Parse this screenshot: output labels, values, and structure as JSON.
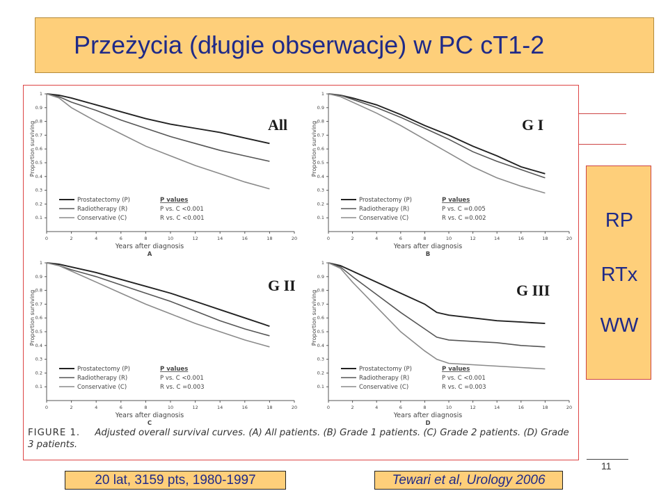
{
  "slide": {
    "title": "Przeżycia (długie obserwacje) w PC cT1-2",
    "footer_left": "20 lat, 3159 pts, 1980-1997",
    "footer_right": "Tewari et al, Urology 2006",
    "slide_number": "11",
    "legend_items": [
      "RP",
      "RTx",
      "WW"
    ],
    "overlay_labels": [
      "All",
      "G I",
      "G II",
      "G III"
    ],
    "caption_fig": "FIGURE 1.",
    "caption_text": "Adjusted overall survival curves. (A) All patients. (B) Grade 1 patients. (C) Grade 2 patients. (D) Grade 3 patients."
  },
  "colors": {
    "title_bg": "#fecf7a",
    "title_text": "#1f2a88",
    "frame": "#d44444"
  },
  "chart_data": [
    {
      "type": "line",
      "panel": "A",
      "xlabel": "Years after diagnosis",
      "ylabel": "Proportion surviving",
      "x_ticks": [
        0,
        2,
        4,
        6,
        8,
        10,
        12,
        14,
        16,
        18,
        20
      ],
      "y_ticks": [
        0.1,
        0.2,
        0.3,
        0.4,
        0.5,
        0.6,
        0.7,
        0.8,
        0.9,
        1
      ],
      "xlim": [
        0,
        20
      ],
      "ylim": [
        0,
        1
      ],
      "legend_title": "P values",
      "pvalues": [
        "P  vs. C <0.001",
        "R  vs. C <0.001"
      ],
      "series": [
        {
          "name": "Prostatectomy (P)",
          "x": [
            0,
            1,
            2,
            4,
            6,
            8,
            10,
            12,
            14,
            16,
            18
          ],
          "y": [
            1,
            0.99,
            0.97,
            0.92,
            0.87,
            0.82,
            0.78,
            0.75,
            0.72,
            0.68,
            0.64
          ]
        },
        {
          "name": "Radiotherapy (R)",
          "x": [
            0,
            1,
            2,
            4,
            6,
            8,
            10,
            12,
            14,
            16,
            18
          ],
          "y": [
            1,
            0.98,
            0.94,
            0.88,
            0.81,
            0.75,
            0.69,
            0.64,
            0.59,
            0.55,
            0.51
          ]
        },
        {
          "name": "Conservative (C)",
          "x": [
            0,
            1,
            2,
            4,
            6,
            8,
            10,
            12,
            14,
            16,
            18
          ],
          "y": [
            1,
            0.97,
            0.9,
            0.8,
            0.71,
            0.62,
            0.55,
            0.48,
            0.42,
            0.36,
            0.31
          ]
        }
      ]
    },
    {
      "type": "line",
      "panel": "B",
      "xlabel": "Years after diagnosis",
      "ylabel": "Proportion surviving",
      "x_ticks": [
        0,
        2,
        4,
        6,
        8,
        10,
        12,
        14,
        16,
        18,
        20
      ],
      "y_ticks": [
        0.1,
        0.2,
        0.3,
        0.4,
        0.5,
        0.6,
        0.7,
        0.8,
        0.9,
        1
      ],
      "xlim": [
        0,
        20
      ],
      "ylim": [
        0,
        1
      ],
      "legend_title": "P values",
      "pvalues": [
        "P  vs. C =0.005",
        "R  vs. C =0.002"
      ],
      "series": [
        {
          "name": "Prostatectomy (P)",
          "x": [
            0,
            1,
            2,
            4,
            6,
            8,
            10,
            12,
            14,
            16,
            18
          ],
          "y": [
            1,
            0.99,
            0.97,
            0.92,
            0.85,
            0.77,
            0.7,
            0.62,
            0.55,
            0.47,
            0.42
          ]
        },
        {
          "name": "Radiotherapy (R)",
          "x": [
            0,
            1,
            2,
            4,
            6,
            8,
            10,
            12,
            14,
            16,
            18
          ],
          "y": [
            1,
            0.99,
            0.96,
            0.9,
            0.83,
            0.75,
            0.67,
            0.58,
            0.51,
            0.45,
            0.39
          ]
        },
        {
          "name": "Conservative (C)",
          "x": [
            0,
            1,
            2,
            4,
            6,
            8,
            10,
            12,
            14,
            16,
            18
          ],
          "y": [
            1,
            0.98,
            0.94,
            0.86,
            0.77,
            0.67,
            0.57,
            0.47,
            0.39,
            0.33,
            0.28
          ]
        }
      ]
    },
    {
      "type": "line",
      "panel": "C",
      "xlabel": "Years after diagnosis",
      "ylabel": "Proportion surviving",
      "x_ticks": [
        0,
        2,
        4,
        6,
        8,
        10,
        12,
        14,
        16,
        18,
        20
      ],
      "y_ticks": [
        0.1,
        0.2,
        0.3,
        0.4,
        0.5,
        0.6,
        0.7,
        0.8,
        0.9,
        1
      ],
      "xlim": [
        0,
        20
      ],
      "ylim": [
        0,
        1
      ],
      "legend_title": "P values",
      "pvalues": [
        "P  vs. C <0.001",
        "R  vs. C =0.003"
      ],
      "series": [
        {
          "name": "Prostatectomy (P)",
          "x": [
            0,
            1,
            2,
            4,
            6,
            8,
            10,
            12,
            14,
            16,
            18
          ],
          "y": [
            1,
            0.99,
            0.97,
            0.93,
            0.88,
            0.83,
            0.78,
            0.72,
            0.66,
            0.6,
            0.54
          ]
        },
        {
          "name": "Radiotherapy (R)",
          "x": [
            0,
            1,
            2,
            4,
            6,
            8,
            10,
            12,
            14,
            16,
            18
          ],
          "y": [
            1,
            0.98,
            0.95,
            0.9,
            0.84,
            0.78,
            0.72,
            0.65,
            0.58,
            0.52,
            0.47
          ]
        },
        {
          "name": "Conservative (C)",
          "x": [
            0,
            1,
            2,
            4,
            6,
            8,
            10,
            12,
            14,
            16,
            18
          ],
          "y": [
            1,
            0.98,
            0.94,
            0.86,
            0.78,
            0.7,
            0.63,
            0.56,
            0.5,
            0.44,
            0.39
          ]
        }
      ]
    },
    {
      "type": "line",
      "panel": "D",
      "xlabel": "Years after diagnosis",
      "ylabel": "Proportion surviving",
      "x_ticks": [
        0,
        2,
        4,
        6,
        8,
        10,
        12,
        14,
        16,
        18,
        20
      ],
      "y_ticks": [
        0.1,
        0.2,
        0.3,
        0.4,
        0.5,
        0.6,
        0.7,
        0.8,
        0.9,
        1
      ],
      "xlim": [
        0,
        20
      ],
      "ylim": [
        0,
        1
      ],
      "legend_title": "P values",
      "pvalues": [
        "P  vs. C <0.001",
        "R  vs. C =0.003"
      ],
      "series": [
        {
          "name": "Prostatectomy (P)",
          "x": [
            0,
            1,
            2,
            4,
            6,
            8,
            9,
            10,
            12,
            14,
            16,
            18
          ],
          "y": [
            1,
            0.98,
            0.94,
            0.86,
            0.78,
            0.7,
            0.64,
            0.62,
            0.6,
            0.58,
            0.57,
            0.56
          ]
        },
        {
          "name": "Radiotherapy (R)",
          "x": [
            0,
            1,
            2,
            4,
            6,
            8,
            9,
            10,
            12,
            14,
            16,
            18
          ],
          "y": [
            1,
            0.97,
            0.9,
            0.77,
            0.64,
            0.52,
            0.46,
            0.44,
            0.43,
            0.42,
            0.4,
            0.39
          ]
        },
        {
          "name": "Conservative (C)",
          "x": [
            0,
            1,
            2,
            4,
            6,
            8,
            9,
            10,
            12,
            14,
            16,
            18
          ],
          "y": [
            1,
            0.96,
            0.86,
            0.68,
            0.5,
            0.36,
            0.3,
            0.27,
            0.26,
            0.25,
            0.24,
            0.23
          ]
        }
      ]
    }
  ]
}
